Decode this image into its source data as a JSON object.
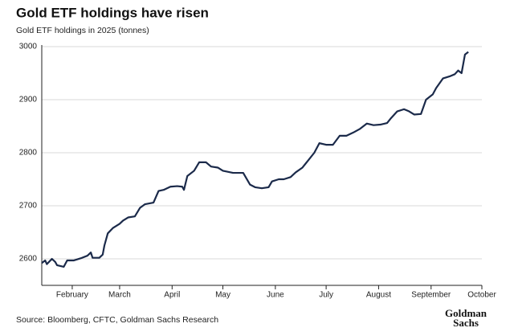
{
  "chart_data": {
    "type": "line",
    "title": "Gold ETF holdings have risen",
    "subtitle": "Gold ETF holdings in 2025 (tonnes)",
    "source": "Source: Bloomberg, CFTC, Goldman Sachs Research",
    "logo": [
      "Goldman",
      "Sachs"
    ],
    "color": "#1b2a4a",
    "grid": true,
    "xlim": [
      14,
      274
    ],
    "xticks": [
      {
        "value": 32,
        "label": "February"
      },
      {
        "value": 60,
        "label": "March"
      },
      {
        "value": 91,
        "label": "April"
      },
      {
        "value": 121,
        "label": "May"
      },
      {
        "value": 152,
        "label": "June"
      },
      {
        "value": 182,
        "label": "July"
      },
      {
        "value": 213,
        "label": "August"
      },
      {
        "value": 244,
        "label": "September"
      },
      {
        "value": 274,
        "label": "October"
      }
    ],
    "ylim": [
      2550,
      3000
    ],
    "yticks": [
      2600,
      2700,
      2800,
      2900,
      3000
    ],
    "x": [
      14,
      16,
      17,
      20,
      22,
      23,
      27,
      29,
      33,
      37,
      41,
      43,
      44,
      48,
      50,
      51,
      53,
      56,
      60,
      62,
      65,
      69,
      72,
      75,
      80,
      83,
      86,
      90,
      94,
      97,
      98,
      100,
      104,
      107,
      111,
      114,
      118,
      121,
      127,
      133,
      137,
      140,
      144,
      148,
      150,
      154,
      157,
      161,
      164,
      168,
      172,
      175,
      178,
      182,
      186,
      190,
      194,
      198,
      202,
      206,
      210,
      214,
      218,
      220,
      224,
      228,
      231,
      234,
      238,
      241,
      245,
      247,
      251,
      255,
      258,
      260,
      262,
      264,
      266
    ],
    "values": [
      2592,
      2597,
      2590,
      2600,
      2594,
      2588,
      2585,
      2597,
      2597,
      2601,
      2606,
      2612,
      2602,
      2602,
      2608,
      2625,
      2648,
      2658,
      2666,
      2672,
      2678,
      2680,
      2696,
      2703,
      2706,
      2728,
      2730,
      2736,
      2737,
      2736,
      2730,
      2756,
      2766,
      2782,
      2782,
      2774,
      2772,
      2766,
      2762,
      2762,
      2740,
      2735,
      2733,
      2735,
      2746,
      2750,
      2750,
      2754,
      2763,
      2772,
      2788,
      2800,
      2818,
      2815,
      2815,
      2832,
      2832,
      2838,
      2845,
      2855,
      2852,
      2853,
      2856,
      2864,
      2878,
      2882,
      2878,
      2872,
      2873,
      2900,
      2910,
      2922,
      2940,
      2944,
      2948,
      2955,
      2950,
      2985,
      2990
    ]
  }
}
